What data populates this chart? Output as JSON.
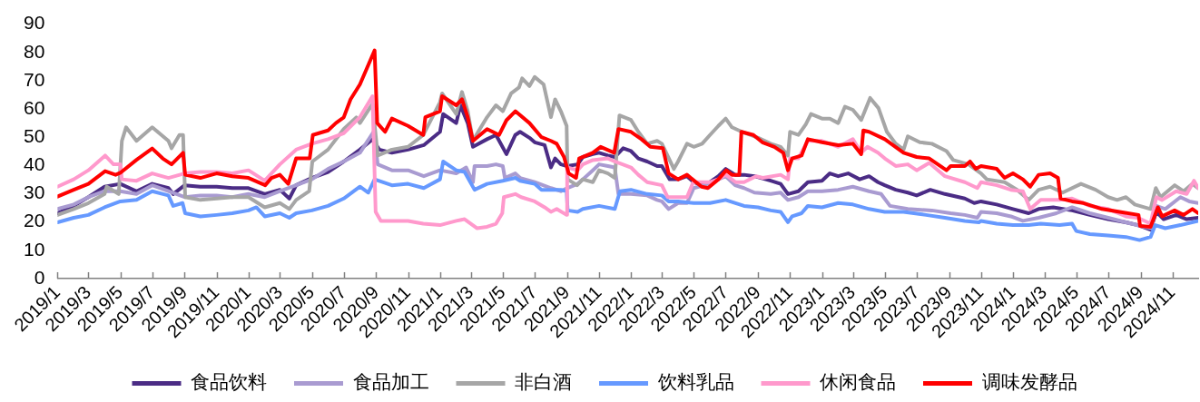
{
  "chart_data": {
    "type": "line",
    "legend": "bottom",
    "xlim": [
      "2019-01-01",
      "2024-12-20"
    ],
    "xticks": [
      {
        "value": "2019-01-01",
        "label": "2019/1"
      },
      {
        "value": "2019-03-01",
        "label": "2019/3"
      },
      {
        "value": "2019-05-01",
        "label": "2019/5"
      },
      {
        "value": "2019-07-01",
        "label": "2019/7"
      },
      {
        "value": "2019-09-01",
        "label": "2019/9"
      },
      {
        "value": "2019-11-01",
        "label": "2019/11"
      },
      {
        "value": "2020-01-01",
        "label": "2020/1"
      },
      {
        "value": "2020-03-01",
        "label": "2020/3"
      },
      {
        "value": "2020-05-01",
        "label": "2020/5"
      },
      {
        "value": "2020-07-01",
        "label": "2020/7"
      },
      {
        "value": "2020-09-01",
        "label": "2020/9"
      },
      {
        "value": "2020-11-01",
        "label": "2020/11"
      },
      {
        "value": "2021-01-01",
        "label": "2021/1"
      },
      {
        "value": "2021-03-01",
        "label": "2021/3"
      },
      {
        "value": "2021-05-01",
        "label": "2021/5"
      },
      {
        "value": "2021-07-01",
        "label": "2021/7"
      },
      {
        "value": "2021-09-01",
        "label": "2021/9"
      },
      {
        "value": "2021-11-01",
        "label": "2021/11"
      },
      {
        "value": "2022-01-01",
        "label": "2022/1"
      },
      {
        "value": "2022-03-01",
        "label": "2022/3"
      },
      {
        "value": "2022-05-01",
        "label": "2022/5"
      },
      {
        "value": "2022-07-01",
        "label": "2022/7"
      },
      {
        "value": "2022-09-01",
        "label": "2022/9"
      },
      {
        "value": "2022-11-01",
        "label": "2022/11"
      },
      {
        "value": "2023-01-01",
        "label": "2023/1"
      },
      {
        "value": "2023-03-01",
        "label": "2023/3"
      },
      {
        "value": "2023-05-01",
        "label": "2023/5"
      },
      {
        "value": "2023-07-01",
        "label": "2023/7"
      },
      {
        "value": "2023-09-01",
        "label": "2023/9"
      },
      {
        "value": "2023-11-01",
        "label": "2023/11"
      },
      {
        "value": "2024-01-01",
        "label": "2024/1"
      },
      {
        "value": "2024-03-01",
        "label": "2024/3"
      },
      {
        "value": "2024-05-01",
        "label": "2024/5"
      },
      {
        "value": "2024-07-01",
        "label": "2024/7"
      },
      {
        "value": "2024-09-01",
        "label": "2024/9"
      },
      {
        "value": "2024-11-01",
        "label": "2024/11"
      }
    ],
    "ylim": [
      0,
      90
    ],
    "yticks": [
      0,
      10,
      20,
      30,
      40,
      50,
      60,
      70,
      80,
      90
    ],
    "series": [
      {
        "name": "食品饮料",
        "color": "#4b2c85",
        "x": [
          "2019-01-01",
          "2019-02-01",
          "2019-03-01",
          "2019-04-01",
          "2019-05-01",
          "2019-06-01",
          "2019-07-01",
          "2019-08-01",
          "2019-08-10",
          "2019-09-01",
          "2019-10-01",
          "2019-11-01",
          "2019-12-01",
          "2020-01-01",
          "2020-02-01",
          "2020-03-01",
          "2020-03-19",
          "2020-04-01",
          "2020-05-01",
          "2020-06-01",
          "2020-07-01",
          "2020-08-01",
          "2020-08-25",
          "2020-09-07",
          "2020-10-01",
          "2020-11-01",
          "2020-12-01",
          "2021-01-01",
          "2021-01-07",
          "2021-02-01",
          "2021-02-09",
          "2021-02-23",
          "2021-03-05",
          "2021-04-01",
          "2021-04-18",
          "2021-05-08",
          "2021-05-25",
          "2021-06-03",
          "2021-06-21",
          "2021-07-01",
          "2021-07-20",
          "2021-08-01",
          "2021-08-09",
          "2021-08-20",
          "2021-09-01",
          "2021-09-21",
          "2021-10-01",
          "2021-10-20",
          "2021-11-01",
          "2021-11-18",
          "2021-12-01",
          "2021-12-17",
          "2022-01-01",
          "2022-01-15",
          "2022-02-01",
          "2022-02-20",
          "2022-03-01",
          "2022-03-16",
          "2022-04-01",
          "2022-04-18",
          "2022-05-01",
          "2022-05-17",
          "2022-06-01",
          "2022-06-17",
          "2022-07-01",
          "2022-07-19",
          "2022-08-05",
          "2022-08-25",
          "2022-09-25",
          "2022-10-14",
          "2022-10-28",
          "2022-11-17",
          "2022-12-05",
          "2023-01-01",
          "2023-01-16",
          "2023-02-01",
          "2023-02-20",
          "2023-03-14",
          "2023-04-01",
          "2023-04-18",
          "2023-05-01",
          "2023-05-22",
          "2023-06-14",
          "2023-07-01",
          "2023-07-27",
          "2023-08-24",
          "2023-10-01",
          "2023-10-19",
          "2023-11-01",
          "2023-12-01",
          "2024-01-01",
          "2024-01-31",
          "2024-02-19",
          "2024-03-18",
          "2024-04-23",
          "2024-05-27",
          "2024-07-01",
          "2024-08-04",
          "2024-08-27",
          "2024-09-20",
          "2024-10-01",
          "2024-10-15",
          "2024-11-08",
          "2024-11-28",
          "2024-12-20"
        ],
        "values": [
          23.1,
          25.7,
          28.8,
          32.5,
          33.5,
          30.9,
          33.5,
          32.0,
          29.9,
          33.0,
          32.5,
          32.5,
          32.0,
          32.0,
          29.9,
          31.4,
          28.3,
          33.0,
          35.6,
          37.7,
          41.4,
          45.6,
          49.3,
          45.6,
          44.5,
          45.6,
          47.2,
          51.9,
          58.2,
          55.0,
          61.3,
          55.0,
          46.6,
          49.3,
          50.8,
          44.0,
          50.8,
          51.9,
          49.8,
          48.2,
          47.2,
          39.3,
          42.5,
          40.4,
          39.8,
          40.4,
          43.0,
          44.0,
          44.5,
          43.5,
          43.0,
          46.1,
          45.1,
          42.5,
          41.4,
          39.8,
          39.8,
          35.1,
          35.1,
          36.2,
          34.1,
          33.0,
          34.1,
          36.2,
          38.8,
          36.7,
          36.7,
          36.2,
          34.6,
          33.5,
          29.9,
          30.9,
          34.1,
          34.6,
          37.2,
          36.2,
          37.2,
          35.1,
          36.2,
          34.1,
          33.0,
          31.4,
          30.4,
          29.4,
          31.4,
          29.9,
          28.3,
          26.7,
          27.3,
          26.2,
          24.6,
          23.1,
          24.6,
          25.2,
          24.1,
          22.5,
          21.0,
          19.9,
          18.9,
          17.3,
          23.6,
          21.0,
          22.5,
          21.0,
          21.5
        ]
      },
      {
        "name": "食品加工",
        "color": "#a99bd1",
        "x": [
          "2019-01-01",
          "2019-02-01",
          "2019-03-01",
          "2019-04-01",
          "2019-05-01",
          "2019-06-01",
          "2019-07-01",
          "2019-08-01",
          "2019-09-01",
          "2019-10-01",
          "2019-11-01",
          "2019-12-01",
          "2020-01-01",
          "2020-02-01",
          "2020-03-01",
          "2020-04-01",
          "2020-05-01",
          "2020-06-01",
          "2020-07-01",
          "2020-08-01",
          "2020-08-27",
          "2020-09-04",
          "2020-10-01",
          "2020-11-01",
          "2020-12-01",
          "2021-01-01",
          "2021-02-01",
          "2021-02-20",
          "2021-03-05",
          "2021-03-08",
          "2021-04-01",
          "2021-04-18",
          "2021-05-01",
          "2021-05-05",
          "2021-05-25",
          "2021-06-03",
          "2021-07-01",
          "2021-08-01",
          "2021-08-20",
          "2021-09-01",
          "2021-09-21",
          "2021-10-01",
          "2021-10-20",
          "2021-11-01",
          "2021-11-18",
          "2021-12-01",
          "2021-12-08",
          "2022-01-01",
          "2022-02-01",
          "2022-02-20",
          "2022-03-01",
          "2022-03-14",
          "2022-04-01",
          "2022-04-18",
          "2022-05-01",
          "2022-05-21",
          "2022-06-17",
          "2022-07-01",
          "2022-07-19",
          "2022-08-05",
          "2022-08-25",
          "2022-09-25",
          "2022-10-14",
          "2022-10-28",
          "2022-11-17",
          "2022-12-05",
          "2023-01-01",
          "2023-02-01",
          "2023-03-01",
          "2023-04-01",
          "2023-04-24",
          "2023-05-11",
          "2023-06-14",
          "2023-07-30",
          "2023-09-04",
          "2023-10-01",
          "2023-10-25",
          "2023-11-01",
          "2023-12-01",
          "2023-12-28",
          "2024-01-20",
          "2024-02-19",
          "2024-03-24",
          "2024-04-23",
          "2024-05-27",
          "2024-07-01",
          "2024-08-04",
          "2024-09-08",
          "2024-09-22",
          "2024-10-01",
          "2024-10-18",
          "2024-11-16",
          "2024-12-03",
          "2024-12-20"
        ],
        "values": [
          24.6,
          26.2,
          28.8,
          30.9,
          30.9,
          29.9,
          33.0,
          30.9,
          28.8,
          29.4,
          29.4,
          28.8,
          29.9,
          28.8,
          30.9,
          33.0,
          35.1,
          38.8,
          41.4,
          44.5,
          51.9,
          40.4,
          38.3,
          38.3,
          36.2,
          38.3,
          37.2,
          39.3,
          34.1,
          39.8,
          39.8,
          40.4,
          39.8,
          35.6,
          37.2,
          35.6,
          34.1,
          32.0,
          30.9,
          32.0,
          33.5,
          35.1,
          38.3,
          40.4,
          39.8,
          39.3,
          29.9,
          29.9,
          29.4,
          27.8,
          27.3,
          24.6,
          26.7,
          26.7,
          32.0,
          33.0,
          35.1,
          36.2,
          33.0,
          32.0,
          30.4,
          29.9,
          30.4,
          27.8,
          28.8,
          30.9,
          30.9,
          31.4,
          32.5,
          30.9,
          29.9,
          25.7,
          24.6,
          24.1,
          23.1,
          22.5,
          21.5,
          23.6,
          23.1,
          22.0,
          20.4,
          21.5,
          23.1,
          25.2,
          23.1,
          21.5,
          19.9,
          18.3,
          17.8,
          25.7,
          24.6,
          28.8,
          27.3,
          26.7
        ]
      },
      {
        "name": "非白酒",
        "color": "#a6a6a6",
        "x": [
          "2019-01-01",
          "2019-02-01",
          "2019-03-01",
          "2019-04-01",
          "2019-04-05",
          "2019-04-28",
          "2019-05-04",
          "2019-05-12",
          "2019-06-01",
          "2019-07-01",
          "2019-08-01",
          "2019-08-07",
          "2019-08-22",
          "2019-08-29",
          "2019-09-02",
          "2019-10-01",
          "2019-11-01",
          "2019-12-01",
          "2020-01-01",
          "2020-02-01",
          "2020-03-01",
          "2020-03-19",
          "2020-04-01",
          "2020-04-26",
          "2020-05-02",
          "2020-06-01",
          "2020-07-01",
          "2020-07-25",
          "2020-08-01",
          "2020-08-25",
          "2020-09-04",
          "2020-10-01",
          "2020-11-01",
          "2020-11-30",
          "2021-01-01",
          "2021-01-05",
          "2021-02-01",
          "2021-02-12",
          "2021-02-23",
          "2021-03-05",
          "2021-03-15",
          "2021-04-01",
          "2021-04-18",
          "2021-05-01",
          "2021-05-17",
          "2021-06-01",
          "2021-06-07",
          "2021-06-21",
          "2021-07-01",
          "2021-07-18",
          "2021-08-01",
          "2021-08-09",
          "2021-08-20",
          "2021-08-31",
          "2021-09-02",
          "2021-09-20",
          "2021-10-01",
          "2021-10-20",
          "2021-11-01",
          "2021-11-18",
          "2021-12-01",
          "2021-12-10",
          "2022-01-01",
          "2022-01-15",
          "2022-02-01",
          "2022-02-20",
          "2022-03-01",
          "2022-03-24",
          "2022-04-01",
          "2022-04-18",
          "2022-05-01",
          "2022-05-17",
          "2022-06-01",
          "2022-06-17",
          "2022-07-01",
          "2022-07-13",
          "2022-08-01",
          "2022-08-17",
          "2022-09-01",
          "2022-09-25",
          "2022-10-14",
          "2022-10-28",
          "2022-11-01",
          "2022-11-17",
          "2022-12-01",
          "2022-12-11",
          "2023-01-01",
          "2023-01-16",
          "2023-02-01",
          "2023-02-14",
          "2023-03-01",
          "2023-03-17",
          "2023-04-03",
          "2023-04-19",
          "2023-05-05",
          "2023-05-22",
          "2023-06-06",
          "2023-06-14",
          "2023-07-07",
          "2023-07-30",
          "2023-08-27",
          "2023-09-09",
          "2023-10-08",
          "2023-11-01",
          "2023-11-12",
          "2023-12-16",
          "2024-01-09",
          "2024-01-31",
          "2024-02-19",
          "2024-03-12",
          "2024-04-05",
          "2024-05-10",
          "2024-06-07",
          "2024-07-01",
          "2024-07-18",
          "2024-08-04",
          "2024-08-21",
          "2024-09-20",
          "2024-09-30",
          "2024-10-09",
          "2024-11-05",
          "2024-11-22",
          "2024-12-09",
          "2024-12-20"
        ],
        "values": [
          22.5,
          24.6,
          26.7,
          29.9,
          32.5,
          29.9,
          48.7,
          53.5,
          48.7,
          53.5,
          48.7,
          46.1,
          50.8,
          50.8,
          28.8,
          27.8,
          28.3,
          28.8,
          28.8,
          25.2,
          26.7,
          24.6,
          27.8,
          30.9,
          41.4,
          45.6,
          52.9,
          57.0,
          55.0,
          61.8,
          43.5,
          45.6,
          46.6,
          50.8,
          62.4,
          65.5,
          58.2,
          66.0,
          59.2,
          48.7,
          51.9,
          57.1,
          61.3,
          59.2,
          65.5,
          67.6,
          70.8,
          68.1,
          71.3,
          68.7,
          57.1,
          63.4,
          59.2,
          54.0,
          35.1,
          33.0,
          35.1,
          34.1,
          38.3,
          37.2,
          35.6,
          57.7,
          56.1,
          51.9,
          47.7,
          48.7,
          47.7,
          38.8,
          41.4,
          47.7,
          46.6,
          47.7,
          50.8,
          54.0,
          56.6,
          53.5,
          51.9,
          50.8,
          49.8,
          47.7,
          46.6,
          43.5,
          51.9,
          50.8,
          54.5,
          58.2,
          56.6,
          56.6,
          55.0,
          60.8,
          59.7,
          56.1,
          63.9,
          60.3,
          51.9,
          47.7,
          45.6,
          50.3,
          48.2,
          47.7,
          45.1,
          41.9,
          40.4,
          37.2,
          35.1,
          34.1,
          31.4,
          27.8,
          31.4,
          32.5,
          30.4,
          33.5,
          31.4,
          28.8,
          27.8,
          28.8,
          26.2,
          24.6,
          32.0,
          28.8,
          33.0,
          30.9,
          33.5,
          32.0
        ]
      },
      {
        "name": "饮料乳品",
        "color": "#6699ff",
        "x": [
          "2019-01-01",
          "2019-02-01",
          "2019-03-01",
          "2019-04-01",
          "2019-05-01",
          "2019-06-01",
          "2019-07-01",
          "2019-08-01",
          "2019-08-10",
          "2019-08-28",
          "2019-09-02",
          "2019-10-01",
          "2019-11-01",
          "2019-12-01",
          "2020-01-01",
          "2020-01-16",
          "2020-02-01",
          "2020-03-01",
          "2020-03-19",
          "2020-04-01",
          "2020-05-01",
          "2020-06-01",
          "2020-07-01",
          "2020-08-01",
          "2020-08-17",
          "2020-08-29",
          "2020-10-01",
          "2020-11-01",
          "2020-12-01",
          "2021-01-01",
          "2021-01-07",
          "2021-02-01",
          "2021-02-17",
          "2021-03-08",
          "2021-04-01",
          "2021-05-01",
          "2021-05-25",
          "2021-06-03",
          "2021-07-01",
          "2021-07-14",
          "2021-08-20",
          "2021-08-31",
          "2021-09-02",
          "2021-09-21",
          "2021-10-01",
          "2021-11-01",
          "2021-12-01",
          "2021-12-11",
          "2022-01-01",
          "2022-02-01",
          "2022-03-01",
          "2022-03-14",
          "2022-04-01",
          "2022-05-01",
          "2022-06-01",
          "2022-07-01",
          "2022-08-05",
          "2022-09-01",
          "2022-09-25",
          "2022-10-14",
          "2022-10-28",
          "2022-11-05",
          "2022-11-23",
          "2022-12-05",
          "2023-01-01",
          "2023-02-01",
          "2023-03-01",
          "2023-04-01",
          "2023-05-01",
          "2023-06-06",
          "2023-07-19",
          "2023-08-24",
          "2023-10-01",
          "2023-10-28",
          "2023-11-01",
          "2023-12-01",
          "2024-01-01",
          "2024-01-31",
          "2024-02-23",
          "2024-03-30",
          "2024-04-23",
          "2024-05-01",
          "2024-05-27",
          "2024-07-01",
          "2024-08-04",
          "2024-08-30",
          "2024-09-20",
          "2024-09-29",
          "2024-10-18",
          "2024-11-16",
          "2024-12-20"
        ],
        "values": [
          19.9,
          21.5,
          22.5,
          25.2,
          27.3,
          27.8,
          30.9,
          29.4,
          25.7,
          26.7,
          23.1,
          22.0,
          22.5,
          23.1,
          24.1,
          25.2,
          22.0,
          23.1,
          21.5,
          23.1,
          24.1,
          25.7,
          28.3,
          32.5,
          30.4,
          35.1,
          33.0,
          33.5,
          32.0,
          35.1,
          41.4,
          38.3,
          37.7,
          31.4,
          33.5,
          34.6,
          35.6,
          34.6,
          33.5,
          31.4,
          31.4,
          30.9,
          24.1,
          23.6,
          24.6,
          25.7,
          24.6,
          30.9,
          31.4,
          29.9,
          29.4,
          27.3,
          27.3,
          26.7,
          26.7,
          27.8,
          25.7,
          25.2,
          24.1,
          23.6,
          19.9,
          22.0,
          23.1,
          25.7,
          25.2,
          26.7,
          26.2,
          24.6,
          23.6,
          23.6,
          22.5,
          21.5,
          20.4,
          19.9,
          20.4,
          19.4,
          18.9,
          18.9,
          19.4,
          18.9,
          19.4,
          16.8,
          15.7,
          15.2,
          14.7,
          13.6,
          14.7,
          18.9,
          17.8,
          18.9,
          20.4
        ]
      },
      {
        "name": "休闲食品",
        "color": "#ff99cc",
        "x": [
          "2019-01-01",
          "2019-02-01",
          "2019-03-01",
          "2019-04-02",
          "2019-04-18",
          "2019-05-01",
          "2019-05-04",
          "2019-06-01",
          "2019-07-01",
          "2019-08-01",
          "2019-09-01",
          "2019-10-01",
          "2019-11-01",
          "2019-12-01",
          "2020-01-01",
          "2020-02-01",
          "2020-03-01",
          "2020-04-01",
          "2020-05-01",
          "2020-06-01",
          "2020-07-01",
          "2020-08-01",
          "2020-08-25",
          "2020-08-31",
          "2020-09-10",
          "2020-11-01",
          "2020-11-30",
          "2021-01-01",
          "2021-02-01",
          "2021-02-17",
          "2021-03-13",
          "2021-04-01",
          "2021-04-18",
          "2021-04-30",
          "2021-05-03",
          "2021-05-25",
          "2021-06-05",
          "2021-07-01",
          "2021-07-20",
          "2021-08-01",
          "2021-08-12",
          "2021-08-31",
          "2021-09-01",
          "2021-09-21",
          "2021-10-01",
          "2021-10-20",
          "2021-11-18",
          "2021-12-01",
          "2022-01-01",
          "2022-01-15",
          "2022-02-01",
          "2022-03-01",
          "2022-03-12",
          "2022-04-18",
          "2022-04-30",
          "2022-06-01",
          "2022-06-17",
          "2022-07-01",
          "2022-07-20",
          "2022-08-05",
          "2022-08-28",
          "2022-09-10",
          "2022-10-14",
          "2022-10-28",
          "2022-11-01",
          "2022-11-17",
          "2022-12-05",
          "2023-01-01",
          "2023-02-01",
          "2023-03-01",
          "2023-03-17",
          "2023-03-29",
          "2023-04-18",
          "2023-05-01",
          "2023-05-22",
          "2023-06-14",
          "2023-07-01",
          "2023-07-25",
          "2023-08-24",
          "2023-10-01",
          "2023-10-25",
          "2023-11-01",
          "2023-12-01",
          "2023-12-28",
          "2024-01-20",
          "2024-02-03",
          "2024-02-23",
          "2024-03-30",
          "2024-04-23",
          "2024-05-27",
          "2024-07-01",
          "2024-08-04",
          "2024-08-27",
          "2024-09-20",
          "2024-10-01",
          "2024-10-12",
          "2024-11-08",
          "2024-11-28",
          "2024-12-12",
          "2024-12-20"
        ],
        "values": [
          32.5,
          35.1,
          38.3,
          43.5,
          40.4,
          40.4,
          35.1,
          34.6,
          37.2,
          35.6,
          37.2,
          37.7,
          37.7,
          37.2,
          38.3,
          34.6,
          40.4,
          45.6,
          47.7,
          49.3,
          51.4,
          57.1,
          64.5,
          23.6,
          20.4,
          20.4,
          19.4,
          18.9,
          20.4,
          21.0,
          17.8,
          18.3,
          19.4,
          23.1,
          28.8,
          29.9,
          28.8,
          27.3,
          25.2,
          23.6,
          24.6,
          22.5,
          39.3,
          38.3,
          40.4,
          41.9,
          42.5,
          41.4,
          39.3,
          36.7,
          34.1,
          33.0,
          28.8,
          28.8,
          34.1,
          34.1,
          35.1,
          36.7,
          34.1,
          34.1,
          36.2,
          35.6,
          36.7,
          35.1,
          42.5,
          42.5,
          48.7,
          48.7,
          46.6,
          49.3,
          44.5,
          46.6,
          44.5,
          42.5,
          39.8,
          40.4,
          38.3,
          40.9,
          36.2,
          34.1,
          32.0,
          34.1,
          33.0,
          31.4,
          30.9,
          24.6,
          27.8,
          27.8,
          28.3,
          25.7,
          24.6,
          22.0,
          21.5,
          19.4,
          28.8,
          27.8,
          30.9,
          29.9,
          34.6,
          32.0
        ]
      },
      {
        "name": "调味发酵品",
        "color": "#ff0000",
        "x": [
          "2019-01-01",
          "2019-02-01",
          "2019-03-01",
          "2019-04-02",
          "2019-04-22",
          "2019-05-01",
          "2019-06-01",
          "2019-07-01",
          "2019-07-21",
          "2019-08-07",
          "2019-08-29",
          "2019-09-02",
          "2019-10-01",
          "2019-11-01",
          "2019-12-01",
          "2020-01-01",
          "2020-02-02",
          "2020-02-14",
          "2020-03-01",
          "2020-03-17",
          "2020-04-01",
          "2020-04-27",
          "2020-05-03",
          "2020-06-01",
          "2020-06-16",
          "2020-07-01",
          "2020-07-14",
          "2020-08-01",
          "2020-08-18",
          "2020-08-29",
          "2020-09-03",
          "2020-09-18",
          "2020-10-01",
          "2020-11-01",
          "2020-11-30",
          "2020-12-04",
          "2021-01-01",
          "2021-01-05",
          "2021-02-01",
          "2021-02-12",
          "2021-02-23",
          "2021-03-05",
          "2021-04-01",
          "2021-04-24",
          "2021-05-08",
          "2021-05-25",
          "2021-06-21",
          "2021-07-14",
          "2021-08-01",
          "2021-08-12",
          "2021-08-26",
          "2021-09-04",
          "2021-09-18",
          "2021-09-24",
          "2021-10-20",
          "2021-11-04",
          "2021-11-30",
          "2021-12-08",
          "2022-01-01",
          "2022-01-21",
          "2022-02-07",
          "2022-03-03",
          "2022-03-14",
          "2022-04-01",
          "2022-04-18",
          "2022-05-16",
          "2022-05-28",
          "2022-06-17",
          "2022-07-02",
          "2022-07-13",
          "2022-07-27",
          "2022-07-31",
          "2022-08-23",
          "2022-09-09",
          "2022-10-02",
          "2022-10-19",
          "2022-10-28",
          "2022-11-05",
          "2022-11-23",
          "2022-12-05",
          "2023-01-01",
          "2023-02-01",
          "2023-03-01",
          "2023-03-17",
          "2023-03-21",
          "2023-04-01",
          "2023-05-01",
          "2023-06-06",
          "2023-07-01",
          "2023-07-25",
          "2023-08-27",
          "2023-09-04",
          "2023-10-01",
          "2023-10-11",
          "2023-10-22",
          "2023-11-01",
          "2023-12-01",
          "2023-12-16",
          "2024-01-01",
          "2024-01-20",
          "2024-02-03",
          "2024-02-19",
          "2024-03-12",
          "2024-03-27",
          "2024-04-01",
          "2024-04-23",
          "2024-05-15",
          "2024-06-19",
          "2024-07-23",
          "2024-08-28",
          "2024-08-31",
          "2024-09-20",
          "2024-10-04",
          "2024-10-12",
          "2024-11-05",
          "2024-11-22",
          "2024-12-09",
          "2024-12-20"
        ],
        "values": [
          29.0,
          31.4,
          33.5,
          38.0,
          36.7,
          37.4,
          42.0,
          46.0,
          42.5,
          40.4,
          44.5,
          36.7,
          35.6,
          37.2,
          36.2,
          35.6,
          33.0,
          35.6,
          36.7,
          33.5,
          42.5,
          42.5,
          50.8,
          52.4,
          55.0,
          57.0,
          63.4,
          68.7,
          76.0,
          80.7,
          55.0,
          51.9,
          56.6,
          54.0,
          50.8,
          57.1,
          59.2,
          64.5,
          61.3,
          63.4,
          57.1,
          48.7,
          52.9,
          50.8,
          56.0,
          59.2,
          55.0,
          50.0,
          48.7,
          47.7,
          43.0,
          37.2,
          35.6,
          42.5,
          44.5,
          46.6,
          44.5,
          52.9,
          51.9,
          49.3,
          46.6,
          46.1,
          37.2,
          35.1,
          36.7,
          32.5,
          32.0,
          35.1,
          38.3,
          36.7,
          36.7,
          51.9,
          50.8,
          48.2,
          46.6,
          44.5,
          38.3,
          42.5,
          43.5,
          49.3,
          48.2,
          47.2,
          47.7,
          44.0,
          52.4,
          51.9,
          49.3,
          44.5,
          43.0,
          42.5,
          38.3,
          39.8,
          39.8,
          41.4,
          38.8,
          39.8,
          38.8,
          35.6,
          37.2,
          35.1,
          32.5,
          36.7,
          37.2,
          35.6,
          28.3,
          27.3,
          26.7,
          24.6,
          23.6,
          22.5,
          18.6,
          18.3,
          25.2,
          22.0,
          24.1,
          22.5,
          24.6,
          23.1
        ]
      }
    ]
  }
}
